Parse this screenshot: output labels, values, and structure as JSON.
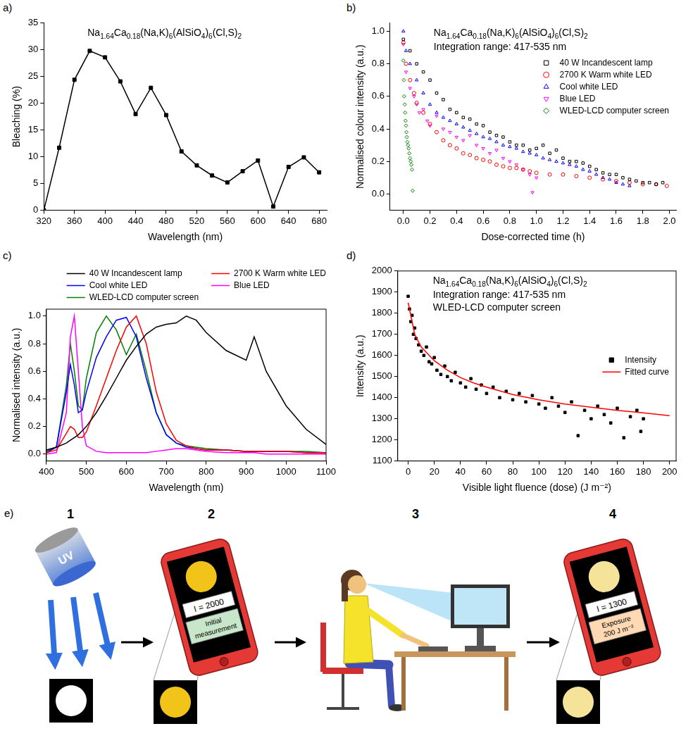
{
  "chart_data": [
    {
      "panel": "a)",
      "type": "line",
      "title": "Na1.64Ca0.18(Na,K)6(AlSiO4)6(Cl,S)2",
      "x_label": "Wavelength (nm)",
      "y_label": "Bleaching (%)",
      "x": [
        320,
        340,
        360,
        380,
        400,
        420,
        440,
        460,
        480,
        500,
        520,
        540,
        560,
        580,
        600,
        620,
        640,
        660,
        680
      ],
      "values": [
        0,
        11.7,
        24.4,
        29.8,
        28.6,
        24.1,
        18.0,
        22.9,
        17.8,
        11.0,
        8.4,
        6.5,
        5.2,
        7.3,
        9.3,
        0.7,
        8.1,
        9.9,
        7.1
      ],
      "color": "#000000",
      "marker": "square",
      "line_style": "solid",
      "xlim": [
        320,
        690
      ],
      "ylim": [
        0,
        35
      ],
      "xticks": [
        320,
        360,
        400,
        440,
        480,
        520,
        560,
        600,
        640,
        680
      ],
      "yticks": [
        0,
        5,
        10,
        15,
        20,
        25,
        30,
        35
      ],
      "grid": false
    },
    {
      "panel": "b)",
      "type": "scatter",
      "title": "Na1.64Ca0.18(Na,K)6(AlSiO4)6(Cl,S)2",
      "annotations": [
        "Integration range: 417-535 nm"
      ],
      "x_label": "Dose-corrected time (h)",
      "y_label": "Normalised colour intensity (a.u.)",
      "series": [
        {
          "name": "40 W Incandescent lamp",
          "color": "#000000",
          "marker": "square-open",
          "x": [
            0,
            0.05,
            0.1,
            0.15,
            0.2,
            0.25,
            0.3,
            0.35,
            0.4,
            0.45,
            0.5,
            0.55,
            0.6,
            0.65,
            0.7,
            0.75,
            0.8,
            0.85,
            0.9,
            0.95,
            1.0,
            1.05,
            1.1,
            1.15,
            1.2,
            1.25,
            1.3,
            1.35,
            1.4,
            1.45,
            1.5,
            1.55,
            1.6,
            1.65,
            1.7,
            1.75,
            1.8,
            1.85,
            1.9,
            1.95
          ],
          "values": [
            0.95,
            0.88,
            0.8,
            0.75,
            0.7,
            0.62,
            0.58,
            0.52,
            0.5,
            0.47,
            0.46,
            0.43,
            0.42,
            0.38,
            0.36,
            0.35,
            0.32,
            0.3,
            0.3,
            0.27,
            0.28,
            0.3,
            0.25,
            0.27,
            0.22,
            0.2,
            0.2,
            0.19,
            0.17,
            0.15,
            0.13,
            0.12,
            0.12,
            0.1,
            0.09,
            0.08,
            0.07,
            0.07,
            0.06,
            0.07
          ]
        },
        {
          "name": "2700 K Warm white LED",
          "color": "#ff0000",
          "marker": "circle-open",
          "x": [
            0,
            0.02,
            0.05,
            0.08,
            0.1,
            0.15,
            0.2,
            0.25,
            0.3,
            0.35,
            0.4,
            0.45,
            0.5,
            0.55,
            0.6,
            0.65,
            0.7,
            0.75,
            0.8,
            0.85,
            0.9,
            0.95,
            1.0,
            1.1,
            1.2,
            1.3,
            1.4,
            1.5,
            1.6,
            1.7,
            1.8,
            1.9,
            1.98
          ],
          "values": [
            0.93,
            0.8,
            0.7,
            0.62,
            0.56,
            0.5,
            0.43,
            0.38,
            0.33,
            0.3,
            0.28,
            0.25,
            0.24,
            0.22,
            0.21,
            0.2,
            0.18,
            0.17,
            0.16,
            0.16,
            0.15,
            0.14,
            0.13,
            0.12,
            0.12,
            0.11,
            0.1,
            0.09,
            0.08,
            0.07,
            0.06,
            0.06,
            0.05
          ]
        },
        {
          "name": "Cool white LED",
          "color": "#0000ff",
          "marker": "triangle-open",
          "x": [
            0,
            0.02,
            0.05,
            0.1,
            0.15,
            0.2,
            0.25,
            0.3,
            0.35,
            0.4,
            0.45,
            0.5,
            0.55,
            0.6,
            0.65,
            0.7,
            0.75,
            0.8,
            0.85,
            0.9,
            0.95,
            1.0,
            1.05,
            1.1,
            1.15,
            1.2,
            1.25,
            1.3,
            1.35,
            1.4,
            1.45,
            1.5,
            1.55,
            1.6,
            1.65,
            1.7
          ],
          "values": [
            1.0,
            0.88,
            0.8,
            0.7,
            0.62,
            0.55,
            0.5,
            0.47,
            0.45,
            0.43,
            0.41,
            0.39,
            0.37,
            0.35,
            0.34,
            0.32,
            0.3,
            0.29,
            0.28,
            0.26,
            0.25,
            0.24,
            0.22,
            0.21,
            0.2,
            0.19,
            0.18,
            0.17,
            0.15,
            0.14,
            0.12,
            0.1,
            0.09,
            0.07,
            0.06,
            0.05
          ]
        },
        {
          "name": "Blue LED",
          "color": "#ff00ff",
          "marker": "triangle-down-open",
          "x": [
            0,
            0.02,
            0.05,
            0.08,
            0.1,
            0.12,
            0.15,
            0.18,
            0.2,
            0.25,
            0.3,
            0.35,
            0.4,
            0.45,
            0.5,
            0.55,
            0.6,
            0.65,
            0.7,
            0.75,
            0.8,
            0.85,
            0.9,
            0.95,
            0.97,
            1.0
          ],
          "values": [
            0.92,
            0.75,
            0.65,
            0.6,
            0.55,
            0.5,
            0.52,
            0.45,
            0.42,
            0.48,
            0.4,
            0.38,
            0.35,
            0.33,
            0.36,
            0.3,
            0.28,
            0.25,
            0.27,
            0.22,
            0.2,
            0.18,
            0.15,
            0.12,
            0.01,
            0.1
          ]
        },
        {
          "name": "WLED-LCD computer screen",
          "color": "#008000",
          "marker": "diamond-open",
          "x": [
            0,
            0.003,
            0.006,
            0.01,
            0.013,
            0.016,
            0.02,
            0.023,
            0.026,
            0.03,
            0.035,
            0.04,
            0.045,
            0.05,
            0.055,
            0.06,
            0.065,
            0.07
          ],
          "values": [
            0.82,
            0.7,
            0.6,
            0.55,
            0.5,
            0.45,
            0.42,
            0.38,
            0.35,
            0.32,
            0.3,
            0.28,
            0.25,
            0.22,
            0.2,
            0.18,
            0.15,
            0.02
          ]
        }
      ],
      "xlim": [
        -0.1,
        2.05
      ],
      "ylim": [
        -0.1,
        1.05
      ],
      "xticks": [
        {
          "value": 0,
          "label": "0.0"
        },
        0.2,
        0.4,
        0.6,
        0.8,
        {
          "value": 1,
          "label": "1.0"
        },
        1.2,
        1.4,
        1.6,
        1.8,
        {
          "value": 2,
          "label": "2.0"
        }
      ],
      "yticks": [
        {
          "value": 0,
          "label": "0.0"
        },
        0.2,
        0.4,
        0.6,
        0.8,
        {
          "value": 1,
          "label": "1.0"
        }
      ],
      "grid": false,
      "legend": "upper right"
    },
    {
      "panel": "c)",
      "type": "line",
      "x_label": "Wavelength (nm)",
      "y_label": "Normalised intensity (a.u.)",
      "x": [
        400,
        425,
        450,
        460,
        470,
        480,
        490,
        500,
        525,
        550,
        575,
        600,
        625,
        650,
        675,
        700,
        725,
        750,
        775,
        800,
        850,
        900,
        920,
        950,
        1000,
        1050,
        1100
      ],
      "series": [
        {
          "name": "40 W Incandescent lamp",
          "color": "#000000",
          "marker": "none",
          "line_style": "solid",
          "values": [
            0.03,
            0.05,
            0.08,
            0.1,
            0.12,
            0.14,
            0.17,
            0.2,
            0.3,
            0.42,
            0.55,
            0.68,
            0.78,
            0.87,
            0.92,
            0.94,
            0.95,
            1.0,
            0.97,
            0.88,
            0.75,
            0.68,
            0.85,
            0.6,
            0.35,
            0.18,
            0.07
          ]
        },
        {
          "name": "2700 K Warm white LED",
          "color": "#ff0000",
          "marker": "none",
          "line_style": "solid",
          "values": [
            0.01,
            0.03,
            0.15,
            0.2,
            0.18,
            0.12,
            0.12,
            0.16,
            0.35,
            0.55,
            0.75,
            0.92,
            1.0,
            0.8,
            0.45,
            0.22,
            0.1,
            0.06,
            0.04,
            0.03,
            0.03,
            0.02,
            0.02,
            0.02,
            0.02,
            0.01,
            0.01
          ]
        },
        {
          "name": "Cool white LED",
          "color": "#0000ff",
          "marker": "none",
          "line_style": "solid",
          "values": [
            0.01,
            0.05,
            0.45,
            0.65,
            0.5,
            0.3,
            0.32,
            0.45,
            0.7,
            0.85,
            0.97,
            0.99,
            0.85,
            0.55,
            0.3,
            0.14,
            0.08,
            0.05,
            0.04,
            0.03,
            0.03,
            0.02,
            0.02,
            0.02,
            0.02,
            0.01,
            0.01
          ]
        },
        {
          "name": "Blue LED",
          "color": "#ff00ff",
          "marker": "none",
          "line_style": "solid",
          "values": [
            0.0,
            0.01,
            0.3,
            0.85,
            1.0,
            0.6,
            0.2,
            0.06,
            0.02,
            0.01,
            0.01,
            0.01,
            0.01,
            0.01,
            0.02,
            0.03,
            0.04,
            0.04,
            0.03,
            0.02,
            0.01,
            0.01,
            0.01,
            0.0,
            0.0,
            0.0,
            0.0
          ]
        },
        {
          "name": "WLED-LCD computer screen",
          "color": "#008000",
          "marker": "none",
          "line_style": "solid",
          "values": [
            0.02,
            0.05,
            0.5,
            0.8,
            0.6,
            0.35,
            0.32,
            0.55,
            0.88,
            1.0,
            0.9,
            0.72,
            0.87,
            0.6,
            0.3,
            0.14,
            0.08,
            0.06,
            0.05,
            0.04,
            0.03,
            0.02,
            0.02,
            0.02,
            0.02,
            0.02,
            0.01
          ]
        }
      ],
      "xlim": [
        400,
        1100
      ],
      "ylim": [
        -0.05,
        1.05
      ],
      "xticks": [
        400,
        500,
        600,
        700,
        800,
        900,
        1000,
        1100
      ],
      "yticks": [
        {
          "value": 0,
          "label": "0.0"
        },
        0.2,
        0.4,
        0.6,
        0.8,
        {
          "value": 1,
          "label": "1.0"
        }
      ],
      "grid": false,
      "legend": "top"
    },
    {
      "panel": "d)",
      "type": "scatter",
      "title": "Na1.64Ca0.18(Na,K)6(AlSiO4)6(Cl,S)2",
      "annotations": [
        "Integration range: 417-535 nm",
        "WLED-LCD computer screen"
      ],
      "x_label": "Visible light fluence (dose) (J m⁻²)",
      "y_label": "Intensity (a.u.)",
      "series": [
        {
          "name": "Intensity",
          "type": "scatter",
          "color": "#000000",
          "marker": "square",
          "x": [
            0,
            1,
            2,
            3,
            4,
            5,
            6,
            8,
            10,
            12,
            14,
            16,
            18,
            20,
            22,
            25,
            28,
            30,
            33,
            36,
            40,
            44,
            48,
            52,
            56,
            60,
            65,
            70,
            75,
            80,
            85,
            90,
            95,
            100,
            105,
            110,
            115,
            120,
            125,
            130,
            135,
            140,
            145,
            150,
            155,
            160,
            165,
            170,
            175,
            178,
            180
          ],
          "values": [
            1880,
            1820,
            1760,
            1790,
            1700,
            1730,
            1680,
            1650,
            1620,
            1600,
            1640,
            1570,
            1560,
            1590,
            1530,
            1510,
            1550,
            1500,
            1480,
            1520,
            1470,
            1450,
            1490,
            1440,
            1460,
            1420,
            1450,
            1400,
            1430,
            1390,
            1420,
            1380,
            1410,
            1370,
            1350,
            1400,
            1360,
            1330,
            1380,
            1220,
            1340,
            1300,
            1360,
            1320,
            1280,
            1350,
            1210,
            1310,
            1340,
            1240,
            1300
          ]
        },
        {
          "name": "Fitted curve",
          "type": "line",
          "color": "#ff0000",
          "marker": "none",
          "line_style": "solid",
          "x": [
            0,
            5,
            10,
            20,
            30,
            40,
            50,
            60,
            80,
            100,
            120,
            140,
            160,
            180,
            200
          ],
          "values": [
            1850,
            1700,
            1640,
            1575,
            1530,
            1495,
            1470,
            1450,
            1415,
            1390,
            1370,
            1355,
            1340,
            1328,
            1315
          ]
        }
      ],
      "xlim": [
        -8,
        205
      ],
      "ylim": [
        1100,
        2000
      ],
      "xticks": [
        0,
        20,
        40,
        60,
        80,
        100,
        120,
        140,
        160,
        180,
        200
      ],
      "yticks": [
        1100,
        1200,
        1300,
        1400,
        1500,
        1600,
        1700,
        1800,
        1900,
        2000
      ],
      "grid": false,
      "legend": "center right"
    }
  ],
  "diagram": {
    "panel": "e)",
    "steps": [
      {
        "number": "1",
        "lamp_text": "UV"
      },
      {
        "number": "2",
        "reading": "I = 2000",
        "note": "Initial measurement"
      },
      {
        "number": "3"
      },
      {
        "number": "4",
        "reading": "I = 1300",
        "note": "Exposure 200 J m⁻²"
      }
    ]
  }
}
